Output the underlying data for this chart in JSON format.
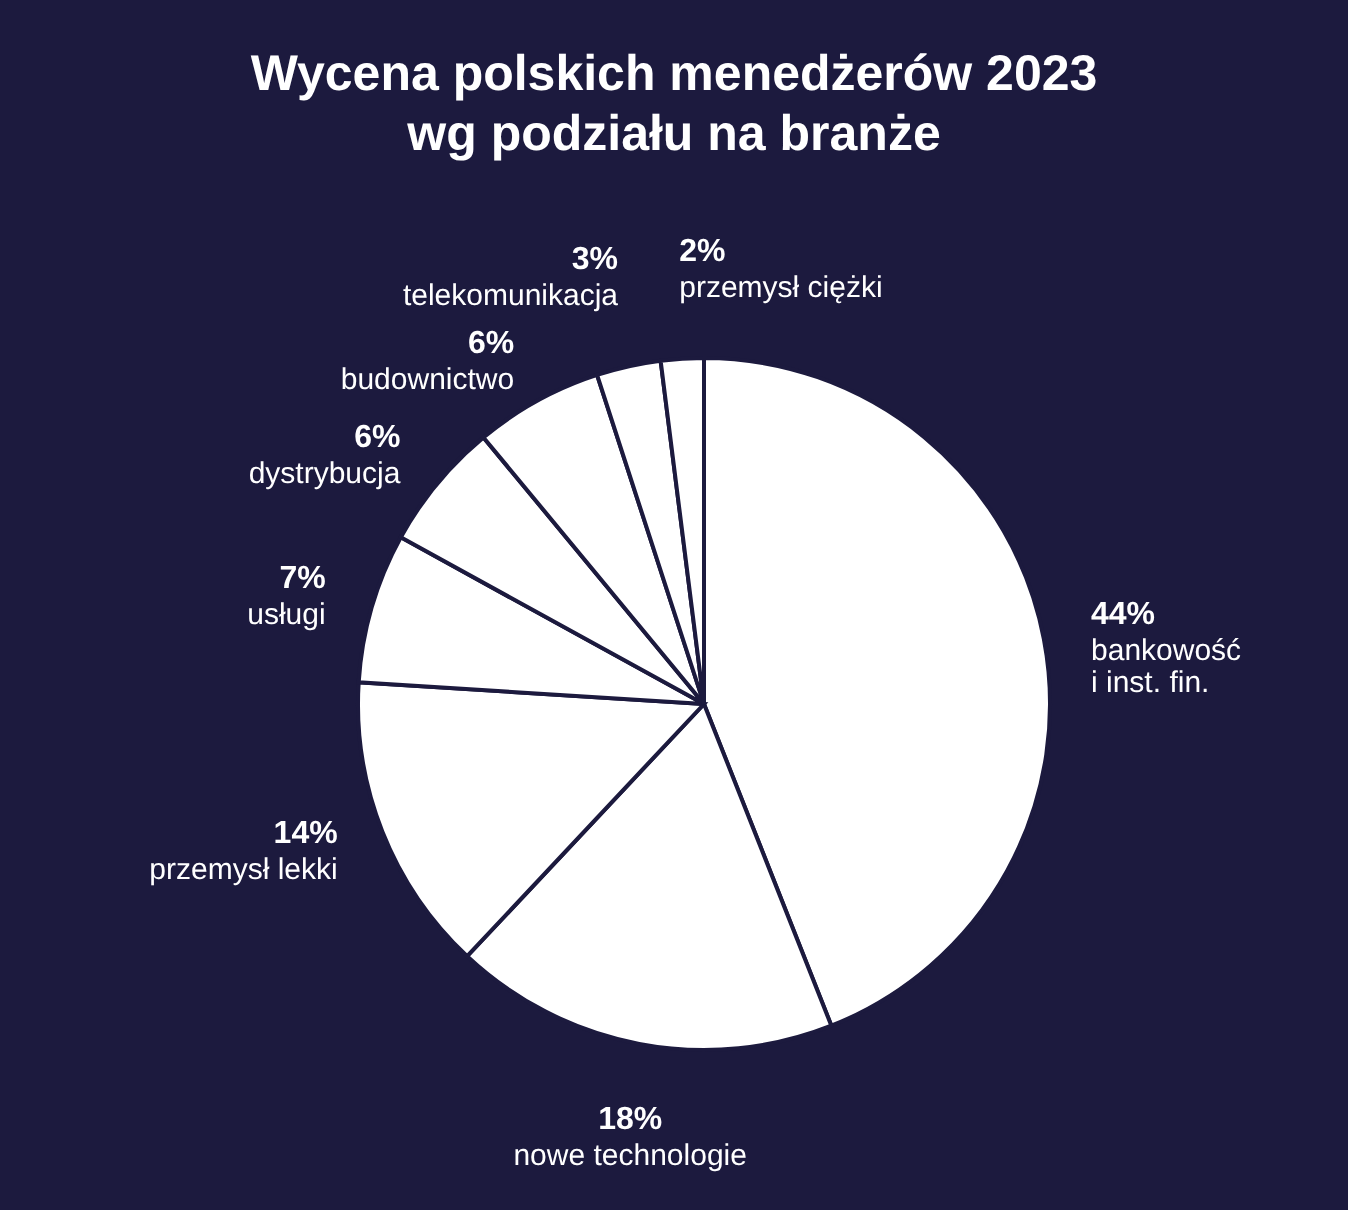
{
  "chart_data": {
    "type": "pie",
    "title": "Wycena polskich menedżerów 2023\nwg podziału na branże",
    "categories": [
      "bankowość\ni inst. fin.",
      "nowe technologie",
      "przemysł lekki",
      "usługi",
      "dystrybucja",
      "budownictwo",
      "telekomunikacja",
      "przemysł ciężki"
    ],
    "values": [
      44,
      18,
      14,
      7,
      6,
      6,
      3,
      2
    ],
    "value_labels": [
      "44%",
      "18%",
      "14%",
      "7%",
      "6%",
      "6%",
      "3%",
      "2%"
    ],
    "colors": [
      "#ffffff",
      "#ffffff",
      "#ffffff",
      "#ffffff",
      "#ffffff",
      "#ffffff",
      "#ffffff",
      "#ffffff"
    ],
    "legend": false
  }
}
